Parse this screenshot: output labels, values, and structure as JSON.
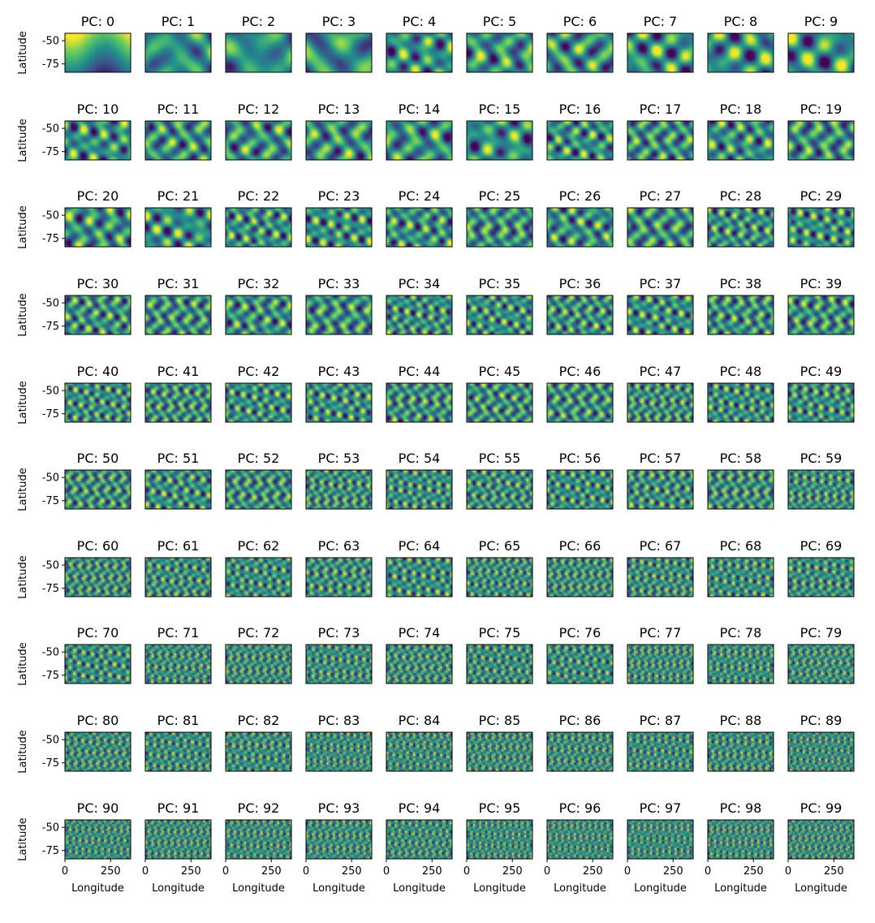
{
  "chart_data": {
    "type": "heatmap",
    "grid": {
      "rows": 10,
      "cols": 10
    },
    "panel_title_prefix": "PC: ",
    "panels": [
      0,
      1,
      2,
      3,
      4,
      5,
      6,
      7,
      8,
      9,
      10,
      11,
      12,
      13,
      14,
      15,
      16,
      17,
      18,
      19,
      20,
      21,
      22,
      23,
      24,
      25,
      26,
      27,
      28,
      29,
      30,
      31,
      32,
      33,
      34,
      35,
      36,
      37,
      38,
      39,
      40,
      41,
      42,
      43,
      44,
      45,
      46,
      47,
      48,
      49,
      50,
      51,
      52,
      53,
      54,
      55,
      56,
      57,
      58,
      59,
      60,
      61,
      62,
      63,
      64,
      65,
      66,
      67,
      68,
      69,
      70,
      71,
      72,
      73,
      74,
      75,
      76,
      77,
      78,
      79,
      80,
      81,
      82,
      83,
      84,
      85,
      86,
      87,
      88,
      89,
      90,
      91,
      92,
      93,
      94,
      95,
      96,
      97,
      98,
      99
    ],
    "xlabel": "Longitude",
    "ylabel": "Latitude",
    "x_ticks": [
      0,
      250
    ],
    "y_ticks": [
      -50,
      -75
    ],
    "xlim": [
      0,
      360
    ],
    "ylim": [
      -84,
      -42
    ],
    "colormap": "viridis",
    "colormap_stops": [
      "#440154",
      "#3b528b",
      "#21918c",
      "#5ec962",
      "#fde725"
    ]
  }
}
